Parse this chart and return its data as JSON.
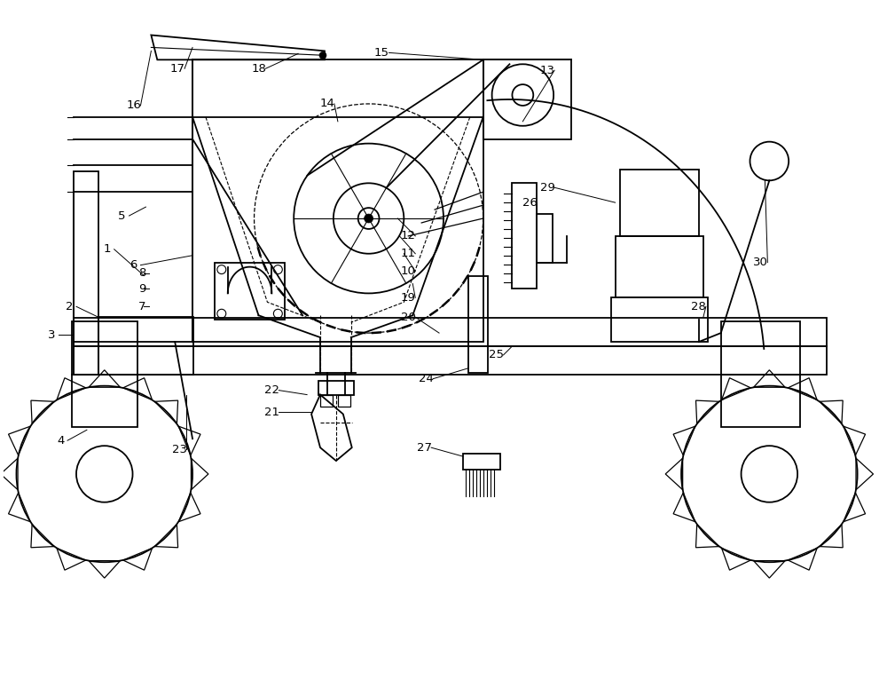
{
  "bg_color": "#ffffff",
  "lc": "#000000",
  "figsize": [
    10,
    7.75
  ],
  "dpi": 100
}
